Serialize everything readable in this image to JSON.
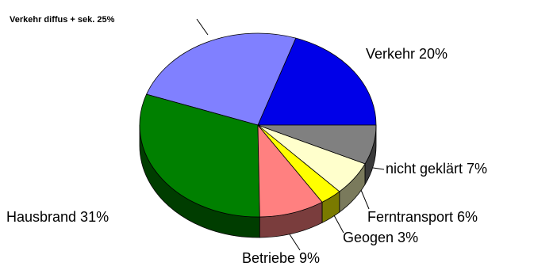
{
  "chart_data": {
    "type": "pie",
    "style": "3d",
    "start_angle_deg": 0,
    "direction": "counterclockwise",
    "slices": [
      {
        "label": "Verkehr",
        "value": 20,
        "display": "Verkehr  20%",
        "color": "#0000e8",
        "side_color": "#000070"
      },
      {
        "label": "Verkehr diffus + sek.",
        "value": 25,
        "display": "Verkehr diffus + sek.  25%",
        "color": "#8080ff",
        "side_color": "#40407a"
      },
      {
        "label": "Hausbrand",
        "value": 31,
        "display": "Hausbrand  31%",
        "color": "#008000",
        "side_color": "#003d00"
      },
      {
        "label": "Betriebe",
        "value": 9,
        "display": "Betriebe  9%",
        "color": "#ff8080",
        "side_color": "#7a3d3d"
      },
      {
        "label": "Geogen",
        "value": 3,
        "display": "Geogen  3%",
        "color": "#ffff00",
        "side_color": "#7a7a00"
      },
      {
        "label": "Ferntransport",
        "value": 6,
        "display": "Ferntransport  6%",
        "color": "#ffffcc",
        "side_color": "#7a7a5c"
      },
      {
        "label": "nicht geklärt",
        "value": 7,
        "display": "nicht geklärt  7%",
        "color": "#808080",
        "side_color": "#3a3a3a"
      }
    ]
  }
}
